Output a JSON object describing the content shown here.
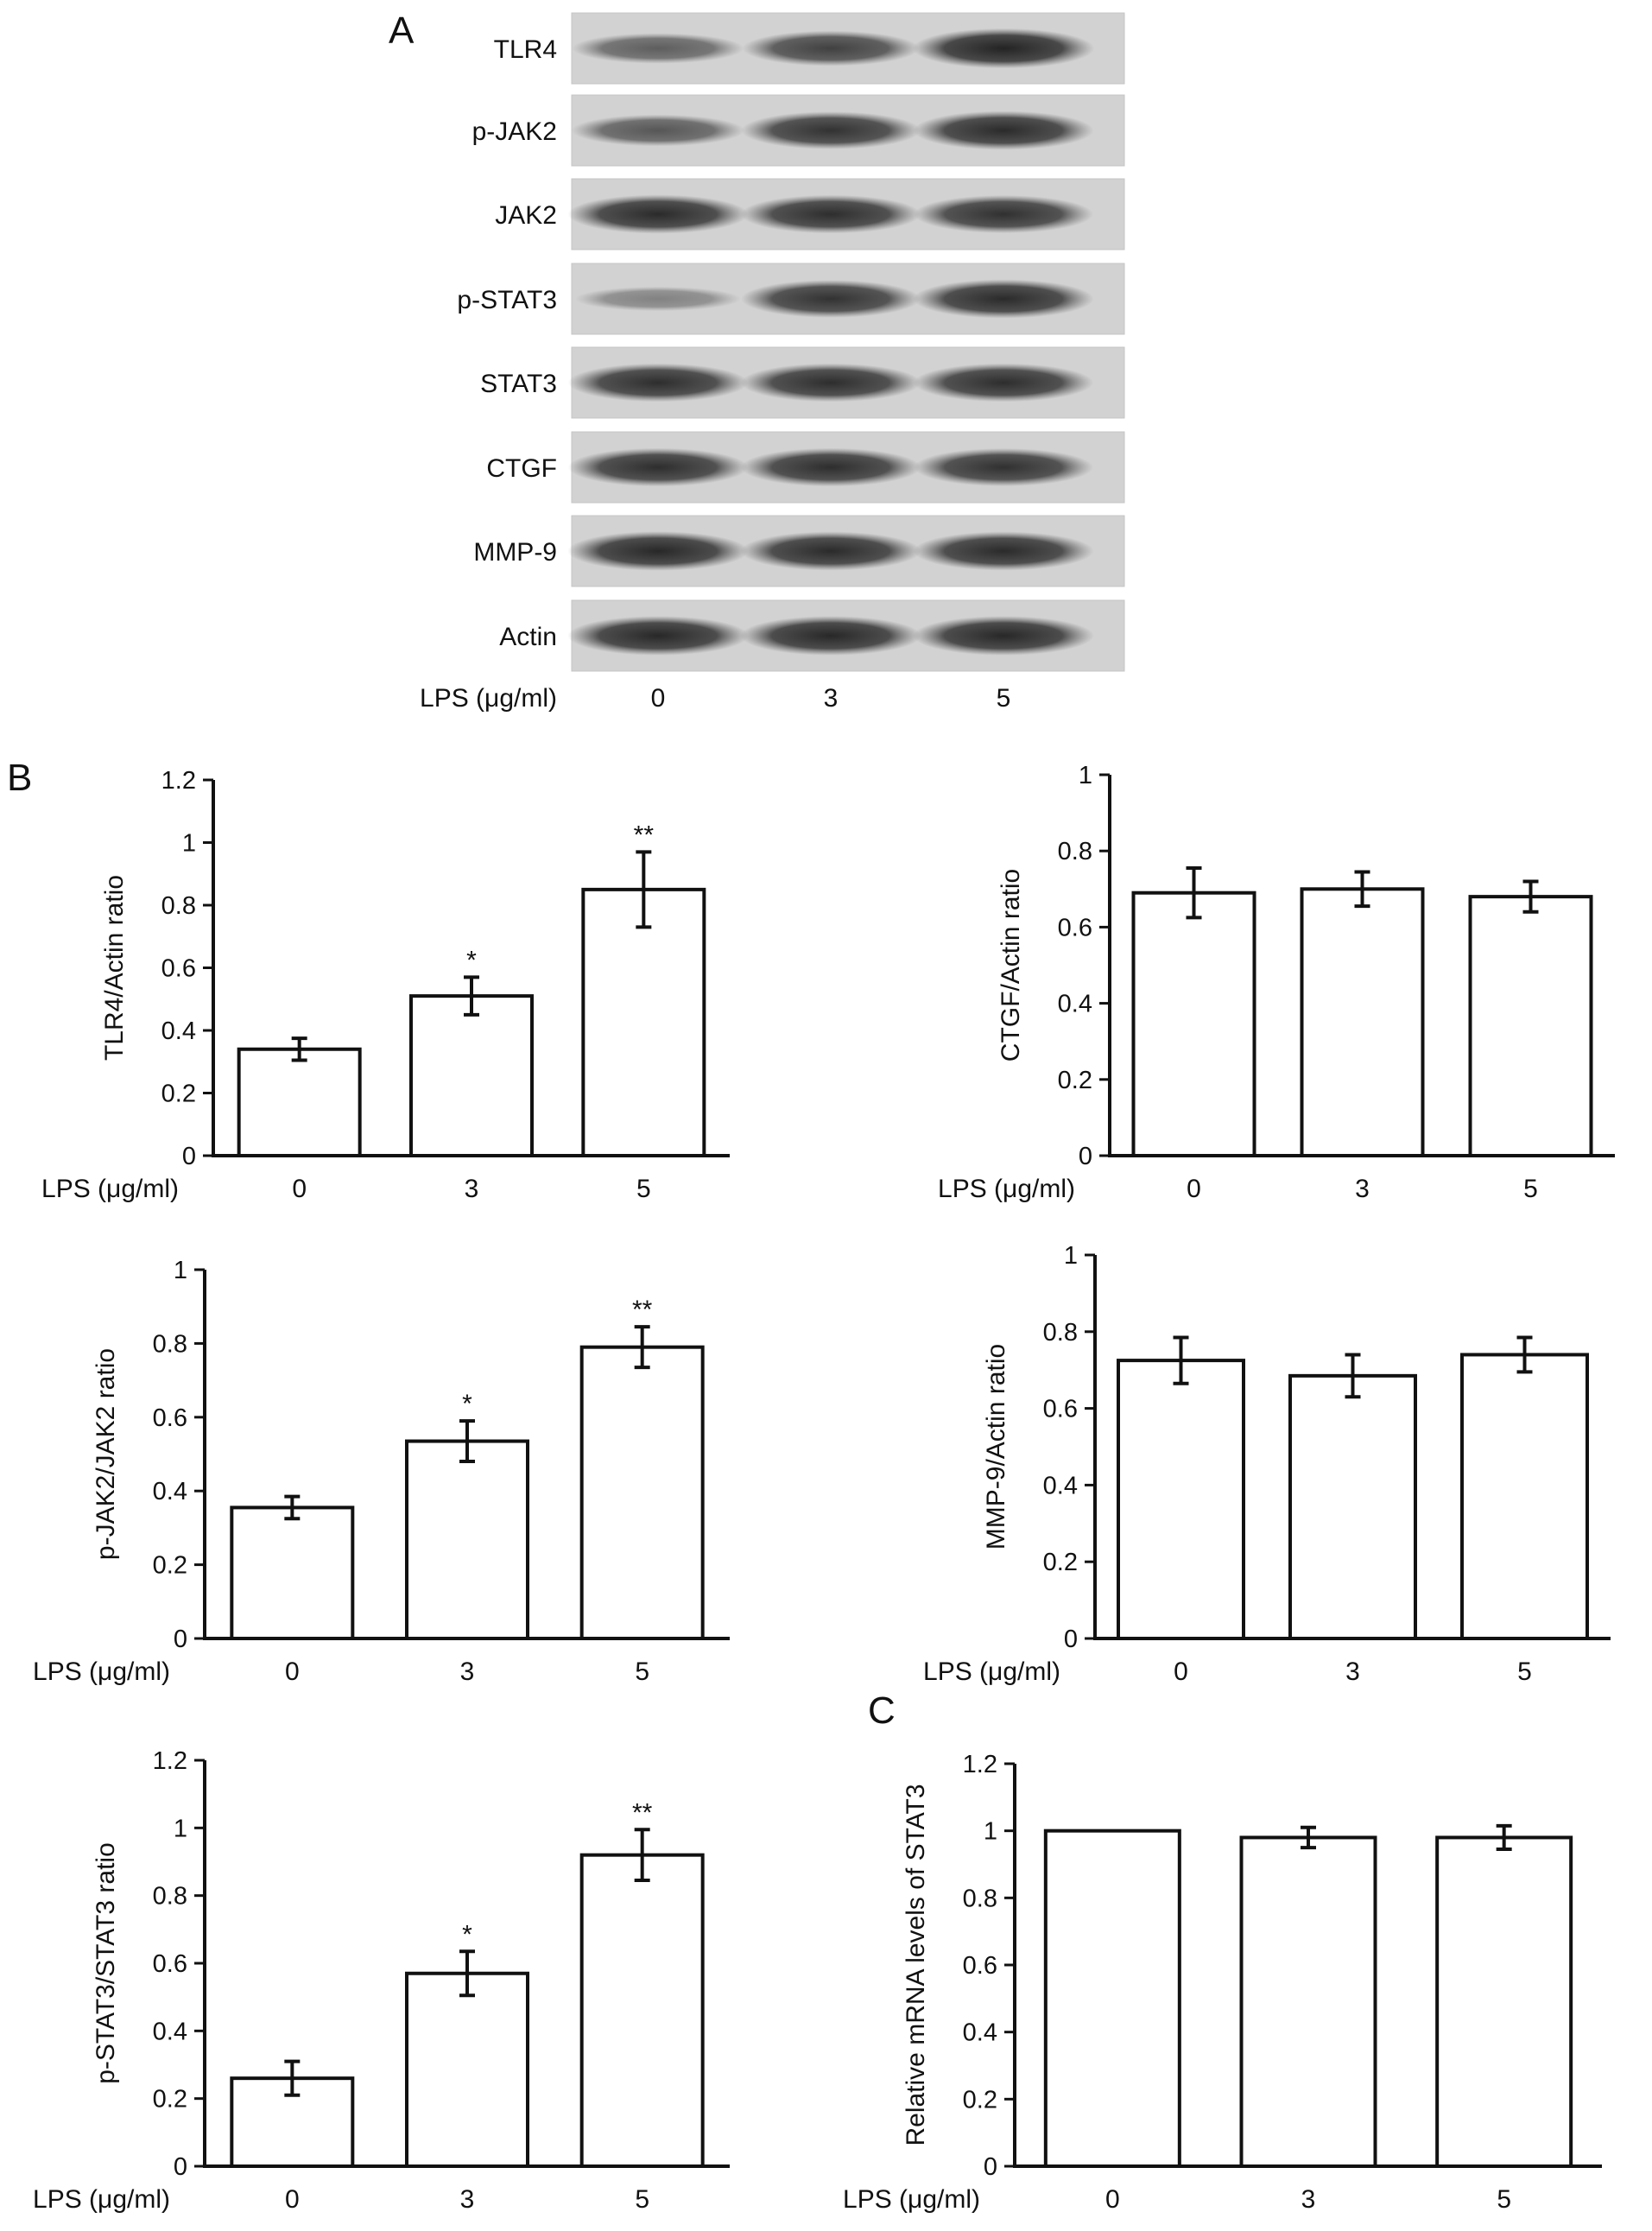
{
  "panel_labels": {
    "a": "A",
    "b": "B",
    "c": "C"
  },
  "blot": {
    "rows": [
      "TLR4",
      "p-JAK2",
      "JAK2",
      "p-STAT3",
      "STAT3",
      "CTGF",
      "MMP-9",
      "Actin"
    ],
    "lane_intensity": [
      [
        0.55,
        0.75,
        0.95
      ],
      [
        0.6,
        0.85,
        0.9
      ],
      [
        0.9,
        0.88,
        0.86
      ],
      [
        0.3,
        0.85,
        0.9
      ],
      [
        0.88,
        0.88,
        0.88
      ],
      [
        0.88,
        0.88,
        0.86
      ],
      [
        0.92,
        0.9,
        0.9
      ],
      [
        0.92,
        0.92,
        0.92
      ]
    ],
    "x_label": "LPS (μg/ml)",
    "lanes": [
      "0",
      "3",
      "5"
    ]
  },
  "chart_data": [
    {
      "type": "bar",
      "ylabel": "TLR4/Actin ratio",
      "xlabel": "LPS (μg/ml)",
      "categories": [
        "0",
        "3",
        "5"
      ],
      "values": [
        0.34,
        0.51,
        0.85
      ],
      "errors": [
        0.035,
        0.06,
        0.12
      ],
      "annotations": [
        "",
        "*",
        "**"
      ],
      "ylim": [
        0,
        1.2
      ],
      "yticks": [
        "0",
        "0.2",
        "0.4",
        "0.6",
        "0.8",
        "1",
        "1.2"
      ]
    },
    {
      "type": "bar",
      "ylabel": "CTGF/Actin ratio",
      "xlabel": "LPS (μg/ml)",
      "categories": [
        "0",
        "3",
        "5"
      ],
      "values": [
        0.69,
        0.7,
        0.68
      ],
      "errors": [
        0.065,
        0.045,
        0.04
      ],
      "annotations": [
        "",
        "",
        ""
      ],
      "ylim": [
        0,
        1
      ],
      "yticks": [
        "0",
        "0.2",
        "0.4",
        "0.6",
        "0.8",
        "1"
      ]
    },
    {
      "type": "bar",
      "ylabel": "p-JAK2/JAK2 ratio",
      "xlabel": "LPS (μg/ml)",
      "categories": [
        "0",
        "3",
        "5"
      ],
      "values": [
        0.355,
        0.535,
        0.79
      ],
      "errors": [
        0.03,
        0.055,
        0.055
      ],
      "annotations": [
        "",
        "*",
        "**"
      ],
      "ylim": [
        0,
        1
      ],
      "yticks": [
        "0",
        "0.2",
        "0.4",
        "0.6",
        "0.8",
        "1"
      ]
    },
    {
      "type": "bar",
      "ylabel": "MMP-9/Actin ratio",
      "xlabel": "LPS (μg/ml)",
      "categories": [
        "0",
        "3",
        "5"
      ],
      "values": [
        0.725,
        0.685,
        0.74
      ],
      "errors": [
        0.06,
        0.055,
        0.045
      ],
      "annotations": [
        "",
        "",
        ""
      ],
      "ylim": [
        0,
        1
      ],
      "yticks": [
        "0",
        "0.2",
        "0.4",
        "0.6",
        "0.8",
        "1"
      ]
    },
    {
      "type": "bar",
      "ylabel": "p-STAT3/STAT3 ratio",
      "xlabel": "LPS (μg/ml)",
      "categories": [
        "0",
        "3",
        "5"
      ],
      "values": [
        0.26,
        0.57,
        0.92
      ],
      "errors": [
        0.05,
        0.065,
        0.075
      ],
      "annotations": [
        "",
        "*",
        "**"
      ],
      "ylim": [
        0,
        1.2
      ],
      "yticks": [
        "0",
        "0.2",
        "0.4",
        "0.6",
        "0.8",
        "1",
        "1.2"
      ]
    },
    {
      "type": "bar",
      "ylabel": "Relative mRNA levels of STAT3",
      "xlabel": "LPS (μg/ml)",
      "categories": [
        "0",
        "3",
        "5"
      ],
      "values": [
        1.0,
        0.98,
        0.98
      ],
      "errors": [
        0.0,
        0.03,
        0.035
      ],
      "annotations": [
        "",
        "",
        ""
      ],
      "ylim": [
        0,
        1.2
      ],
      "yticks": [
        "0",
        "0.2",
        "0.4",
        "0.6",
        "0.8",
        "1",
        "1.2"
      ]
    }
  ]
}
